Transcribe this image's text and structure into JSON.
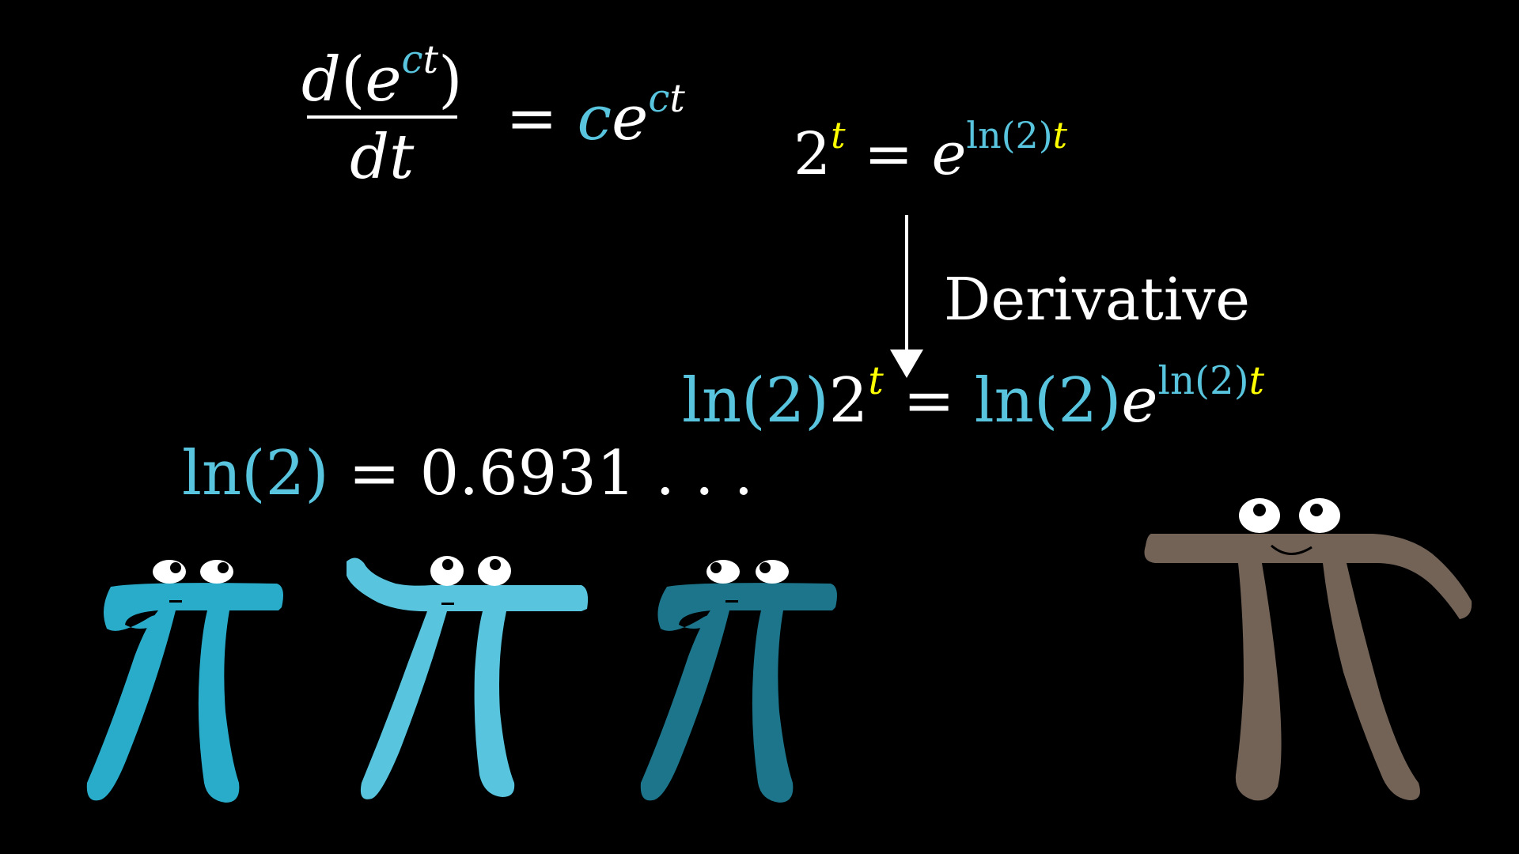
{
  "equations": {
    "derivative": {
      "num_d": "d",
      "num_open": "(",
      "num_e": "e",
      "num_sup_c": "c",
      "num_sup_t": "t",
      "num_close": ")",
      "den": "dt",
      "equals": "=",
      "rhs_c": "c",
      "rhs_e": "e",
      "rhs_sup_c": "c",
      "rhs_sup_t": "t"
    },
    "two_t": {
      "base": "2",
      "exp": "t",
      "equals": "=",
      "e": "e",
      "exp_ln2": "ln(2)",
      "exp_t": "t"
    },
    "arrow_label": "Derivative",
    "result": {
      "ln2_a": "ln(2)",
      "base": "2",
      "exp": "t",
      "equals": "=",
      "ln2_b": "ln(2)",
      "e": "e",
      "exp_ln2": "ln(2)",
      "exp_t": "t"
    },
    "ln2_value": {
      "ln2": "ln(2)",
      "equals": "=",
      "value": "0.6931 . . ."
    }
  },
  "colors": {
    "background": "#000000",
    "text": "#FFFFFF",
    "blue": "#58C4DD",
    "yellow": "#FFFF00",
    "pi_blue_1": "#29ABCA",
    "pi_blue_2": "#58C4DD",
    "pi_blue_3": "#1C758A",
    "pi_brown": "#736357"
  },
  "characters": [
    {
      "name": "pi-creature-blue",
      "expression": "neutral"
    },
    {
      "name": "pi-creature-light-blue",
      "expression": "raised-arm"
    },
    {
      "name": "pi-creature-dark-blue",
      "expression": "neutral"
    },
    {
      "name": "pi-creature-brown",
      "expression": "smiling"
    }
  ]
}
